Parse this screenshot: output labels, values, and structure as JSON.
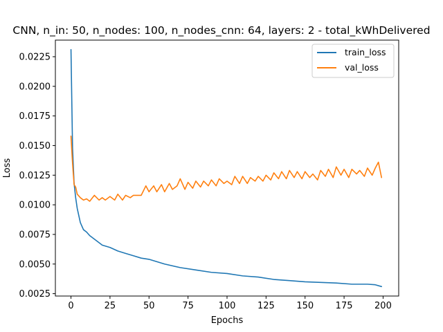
{
  "chart_data": {
    "type": "line",
    "title": "CNN, n_in: 50, n_nodes: 100, n_nodes_cnn: 64, layers: 2 - total_kWhDelivered",
    "xlabel": "Epochs",
    "ylabel": "Loss",
    "xlim": [
      -10,
      210
    ],
    "ylim": [
      0.0023,
      0.0239
    ],
    "grid": false,
    "legend_position": "upper right",
    "x_ticks": [
      0,
      25,
      50,
      75,
      100,
      125,
      150,
      175,
      200
    ],
    "x_tick_labels": [
      "0",
      "25",
      "50",
      "75",
      "100",
      "125",
      "150",
      "175",
      "200"
    ],
    "y_ticks": [
      0.0025,
      0.005,
      0.0075,
      0.01,
      0.0125,
      0.015,
      0.0175,
      0.02,
      0.0225
    ],
    "y_tick_labels": [
      "0.0025",
      "0.0050",
      "0.0075",
      "0.0100",
      "0.0125",
      "0.0150",
      "0.0175",
      "0.0200",
      "0.0225"
    ],
    "series": [
      {
        "name": "train_loss",
        "color": "#1f77b4",
        "x": [
          0,
          1,
          2,
          3,
          4,
          5,
          6,
          8,
          10,
          12,
          15,
          18,
          20,
          25,
          30,
          35,
          40,
          45,
          50,
          60,
          70,
          80,
          90,
          100,
          110,
          120,
          130,
          140,
          150,
          160,
          170,
          180,
          190,
          195,
          199
        ],
        "y": [
          0.0231,
          0.0148,
          0.0118,
          0.0106,
          0.0097,
          0.0091,
          0.0085,
          0.0079,
          0.0077,
          0.0074,
          0.0071,
          0.0068,
          0.0066,
          0.0064,
          0.0061,
          0.0059,
          0.0057,
          0.0055,
          0.0054,
          0.005,
          0.0047,
          0.0045,
          0.0043,
          0.0042,
          0.004,
          0.0039,
          0.0037,
          0.0036,
          0.0035,
          0.00345,
          0.0034,
          0.0033,
          0.0033,
          0.00325,
          0.0031
        ]
      },
      {
        "name": "val_loss",
        "color": "#ff7f0e",
        "x": [
          0,
          1,
          2,
          3,
          4,
          6,
          8,
          10,
          12,
          15,
          18,
          20,
          22,
          25,
          28,
          30,
          33,
          35,
          38,
          40,
          45,
          48,
          50,
          53,
          55,
          58,
          60,
          63,
          65,
          68,
          70,
          73,
          75,
          78,
          80,
          83,
          85,
          88,
          90,
          93,
          95,
          98,
          100,
          103,
          105,
          108,
          110,
          113,
          115,
          118,
          120,
          123,
          125,
          128,
          130,
          133,
          135,
          138,
          140,
          143,
          145,
          148,
          150,
          153,
          155,
          158,
          160,
          163,
          165,
          168,
          170,
          173,
          175,
          178,
          180,
          183,
          185,
          188,
          190,
          193,
          195,
          197,
          199
        ],
        "y": [
          0.0158,
          0.0135,
          0.0117,
          0.0115,
          0.0109,
          0.0106,
          0.0104,
          0.0105,
          0.0103,
          0.0108,
          0.0104,
          0.0106,
          0.0104,
          0.0107,
          0.0104,
          0.0109,
          0.0104,
          0.0108,
          0.0106,
          0.0108,
          0.0108,
          0.0116,
          0.0111,
          0.0116,
          0.0111,
          0.0117,
          0.0111,
          0.0118,
          0.0113,
          0.0116,
          0.0122,
          0.0113,
          0.0119,
          0.0114,
          0.012,
          0.0115,
          0.012,
          0.0116,
          0.0121,
          0.0116,
          0.0122,
          0.0118,
          0.012,
          0.0117,
          0.0124,
          0.0118,
          0.0124,
          0.0118,
          0.0123,
          0.012,
          0.0124,
          0.012,
          0.0125,
          0.0121,
          0.0127,
          0.0122,
          0.0128,
          0.0122,
          0.0129,
          0.0123,
          0.0128,
          0.0122,
          0.0128,
          0.0123,
          0.0126,
          0.0121,
          0.0129,
          0.0124,
          0.013,
          0.0123,
          0.0132,
          0.0125,
          0.013,
          0.0123,
          0.013,
          0.0126,
          0.0129,
          0.0124,
          0.0131,
          0.0125,
          0.0131,
          0.0136,
          0.0123
        ]
      }
    ]
  }
}
